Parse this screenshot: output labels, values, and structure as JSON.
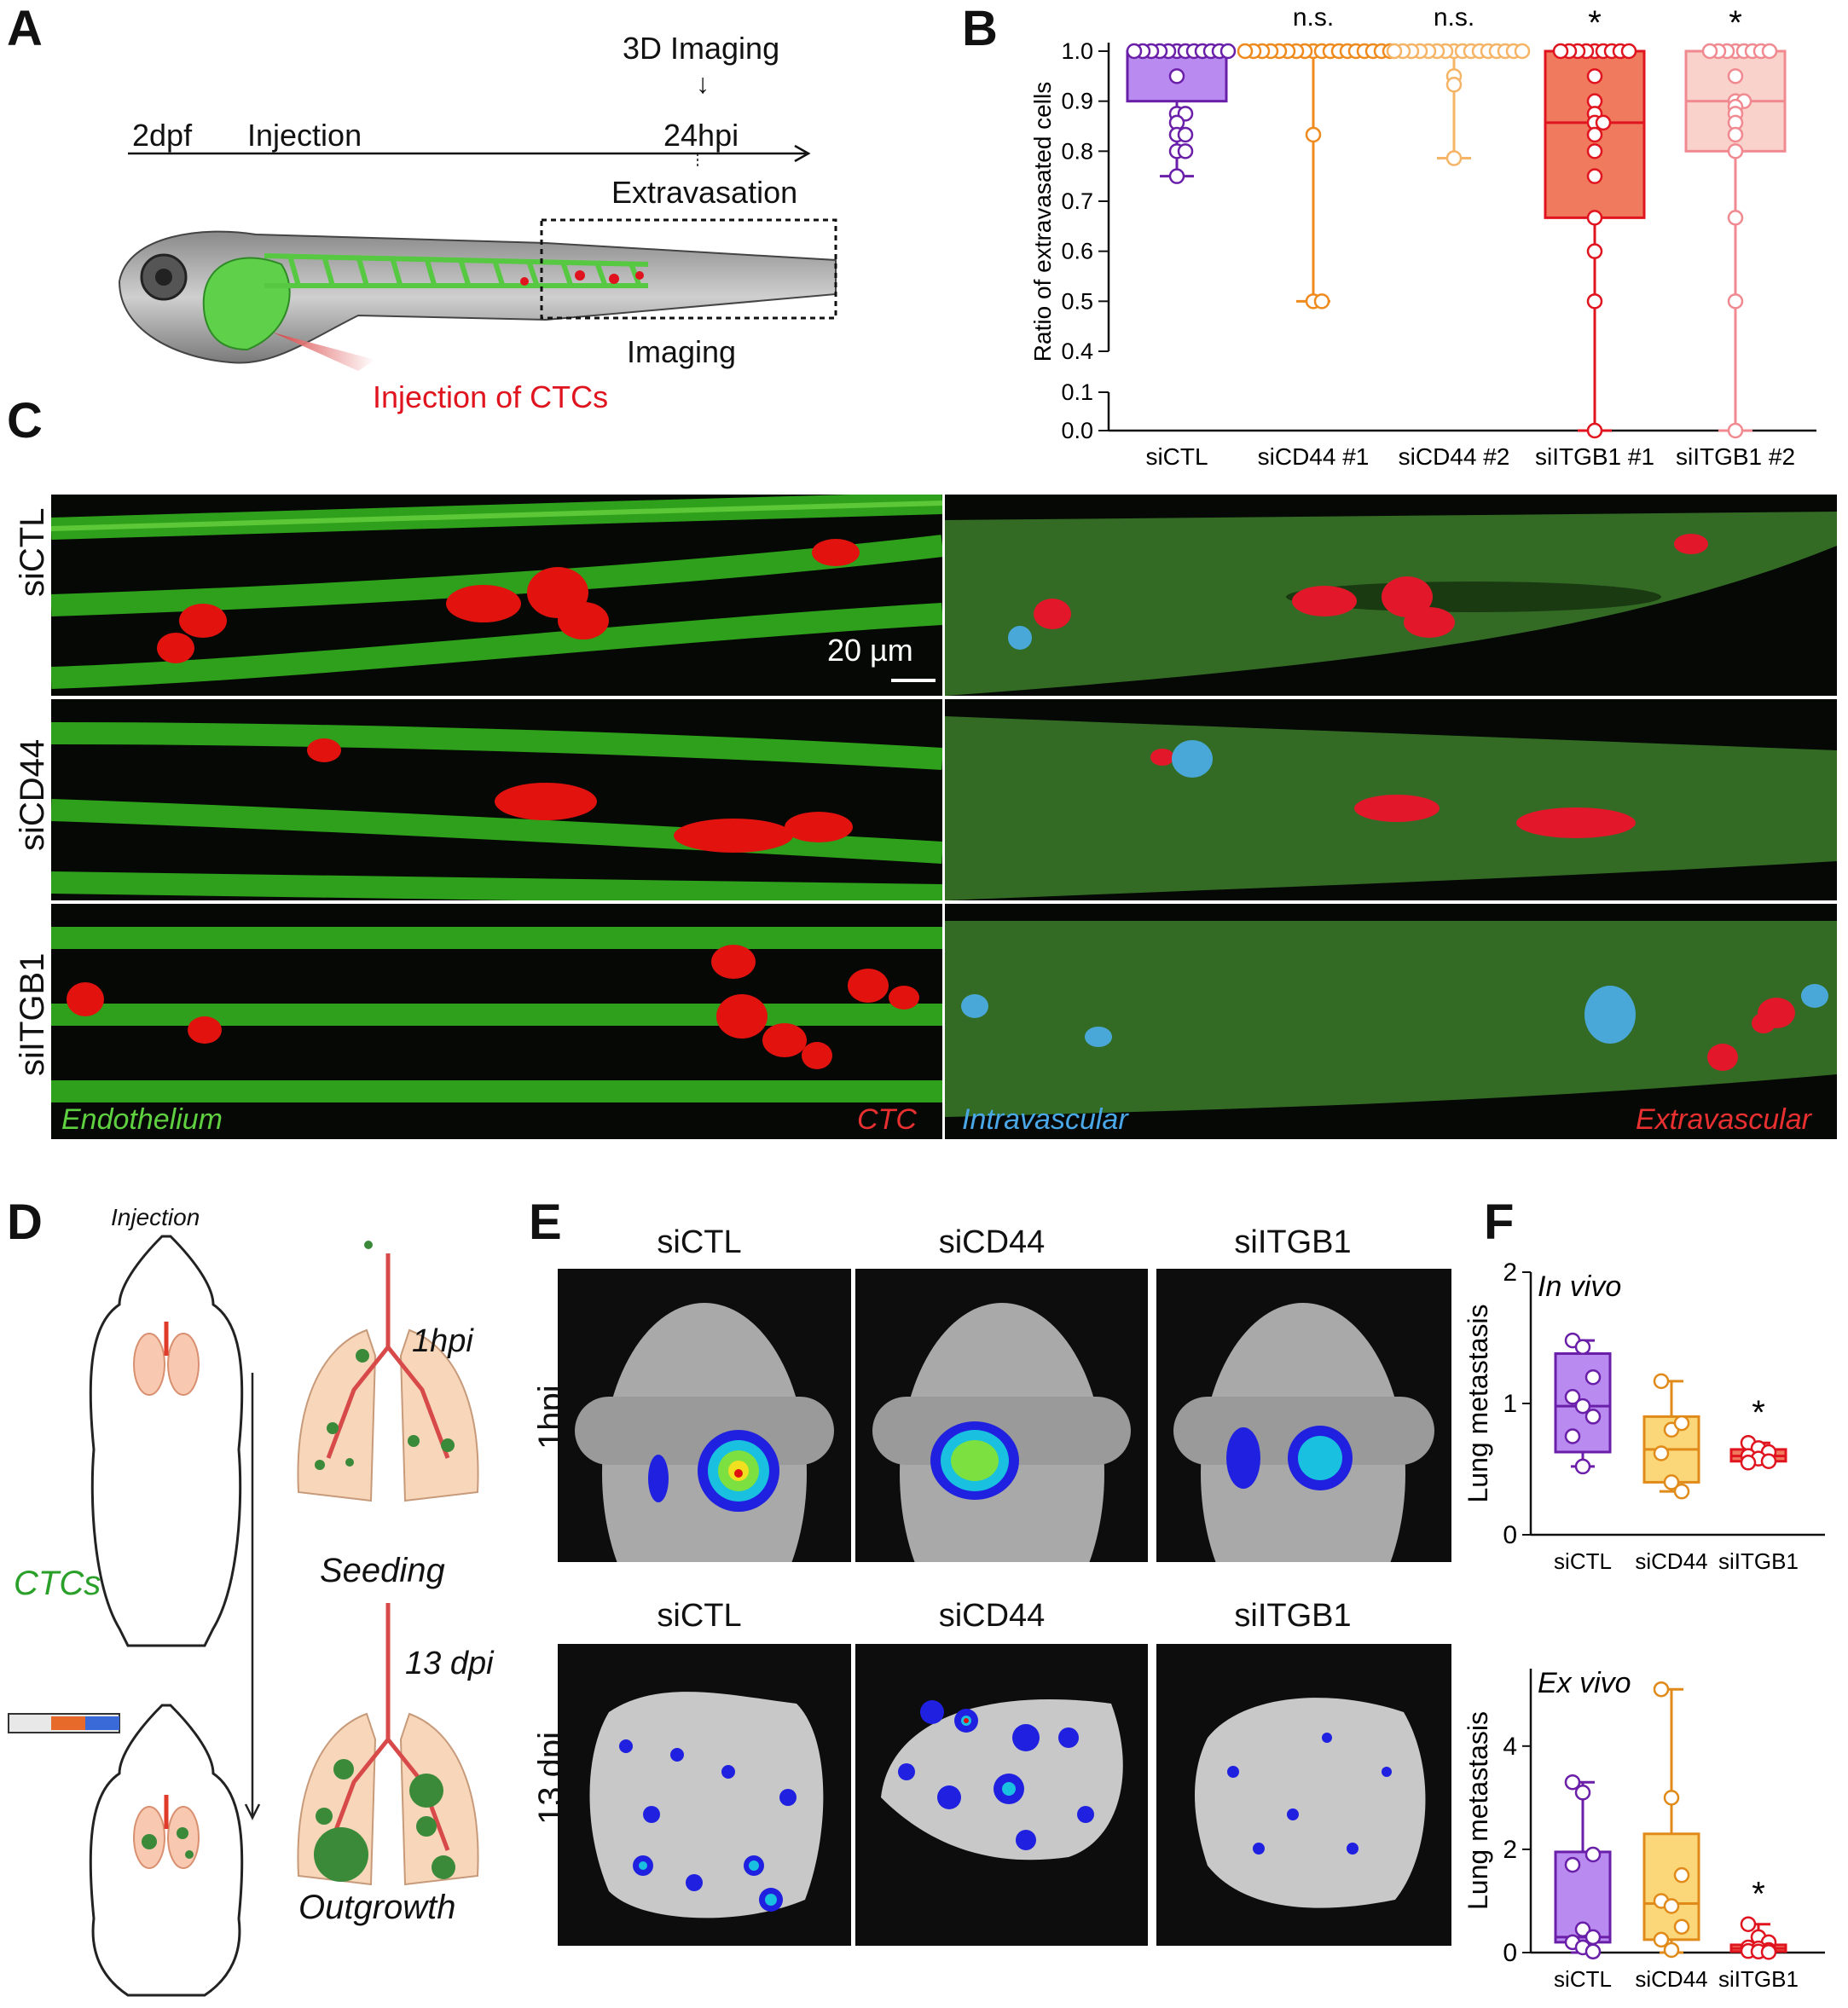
{
  "panel_letters": {
    "a": "A",
    "b": "B",
    "c": "C",
    "d": "D",
    "e": "E",
    "f": "F"
  },
  "panelA": {
    "imaging_3d": "3D Imaging",
    "t_2dpf": "2dpf",
    "injection": "Injection",
    "t_24hpi": "24hpi",
    "extravasation": "Extravasation",
    "imaging": "Imaging",
    "injection_ctcs": "Injection of CTCs"
  },
  "panelC": {
    "rows": [
      "siCTL",
      "siCD44",
      "siITGB1"
    ],
    "scale_bar": "20 µm",
    "left_legend_green": "Endothelium",
    "left_legend_red": "CTC",
    "right_legend_blue": "Intravascular",
    "right_legend_red": "Extravascular"
  },
  "panelD": {
    "injection": "Injection",
    "ctcs": "CTCs",
    "t1": "1hpi",
    "seeding": "Seeding",
    "t2": "13 dpi",
    "outgrowth": "Outgrowth"
  },
  "panelE": {
    "cols": [
      "siCTL",
      "siCD44",
      "siITGB1"
    ],
    "row1": "1hpi",
    "row2": "13 dpi"
  },
  "colors": {
    "siCTL": "#6a1fa8",
    "siCTL_fill": "#b98af0",
    "siCD44_1": "#ef8a1e",
    "siCD44_2": "#f5b466",
    "siITGB1_1": "#e0141e",
    "siITGB1_1_fill": "#f07a5e",
    "siITGB1_2": "#f08a90",
    "siITGB1_2_fill": "#fad2cc",
    "F_siCD44": "#e08a1a",
    "F_siCD44_fill": "#fbd77a"
  },
  "chart_data": [
    {
      "panel": "B",
      "type": "box",
      "ylabel": "Ratio of extravasated cells",
      "categories": [
        "siCTL",
        "siCD44 #1",
        "siCD44 #2",
        "siITGB1 #1",
        "siITGB1 #2"
      ],
      "y_ticks": [
        "0.0",
        "0.1",
        "0.4",
        "0.5",
        "0.6",
        "0.7",
        "0.8",
        "0.9",
        "1.0"
      ],
      "axis_break": [
        0.1,
        0.4
      ],
      "significance": [
        "",
        "n.s.",
        "n.s.",
        "*",
        "*"
      ],
      "boxes": [
        {
          "min": 0.75,
          "q1": 0.9,
          "median": 1.0,
          "q3": 1.0,
          "max": 1.0
        },
        {
          "min": 0.5,
          "q1": 1.0,
          "median": 1.0,
          "q3": 1.0,
          "max": 1.0
        },
        {
          "min": 0.786,
          "q1": 1.0,
          "median": 1.0,
          "q3": 1.0,
          "max": 1.0
        },
        {
          "min": 0.0,
          "q1": 0.667,
          "median": 0.857,
          "q3": 1.0,
          "max": 1.0
        },
        {
          "min": 0.0,
          "q1": 0.8,
          "median": 0.9,
          "q3": 1.0,
          "max": 1.0
        }
      ],
      "points": [
        [
          1,
          1,
          1,
          1,
          1,
          1,
          1,
          1,
          1,
          1,
          1,
          1,
          0.95,
          0.875,
          0.875,
          0.857,
          0.833,
          0.833,
          0.8,
          0.8,
          0.75
        ],
        [
          1,
          1,
          1,
          1,
          1,
          1,
          1,
          1,
          1,
          1,
          1,
          1,
          1,
          1,
          1,
          1,
          1,
          1,
          0.833,
          0.5,
          0.5
        ],
        [
          1,
          1,
          1,
          1,
          1,
          1,
          1,
          1,
          1,
          1,
          1,
          1,
          1,
          1,
          1,
          1,
          0.95,
          0.933,
          0.786
        ],
        [
          1,
          1,
          1,
          1,
          1,
          1,
          1,
          1,
          1,
          0.95,
          0.9,
          0.875,
          0.857,
          0.857,
          0.833,
          0.8,
          0.75,
          0.667,
          0.6,
          0.5,
          0.0
        ],
        [
          1,
          1,
          1,
          1,
          1,
          1,
          1,
          1,
          0.95,
          0.9,
          0.9,
          0.889,
          0.875,
          0.857,
          0.833,
          0.8,
          0.667,
          0.5,
          0.0
        ]
      ]
    },
    {
      "panel": "F-top",
      "type": "box",
      "annotation": "In vivo",
      "ylabel": "Lung metastasis",
      "categories": [
        "siCTL",
        "siCD44",
        "siITGB1"
      ],
      "ylim": [
        0,
        2
      ],
      "y_ticks": [
        "0",
        "1",
        "2"
      ],
      "significance": [
        "",
        "",
        "*"
      ],
      "boxes": [
        {
          "min": 0.52,
          "q1": 0.63,
          "median": 0.98,
          "q3": 1.38,
          "max": 1.48
        },
        {
          "min": 0.33,
          "q1": 0.4,
          "median": 0.65,
          "q3": 0.9,
          "max": 1.17
        },
        {
          "min": 0.55,
          "q1": 0.56,
          "median": 0.6,
          "q3": 0.65,
          "max": 0.7
        }
      ],
      "points": [
        [
          1.48,
          1.43,
          1.2,
          1.05,
          0.98,
          0.9,
          0.75,
          0.52
        ],
        [
          1.17,
          0.8,
          0.85,
          0.62,
          0.4,
          0.33
        ],
        [
          0.7,
          0.66,
          0.63,
          0.6,
          0.58,
          0.56,
          0.55
        ]
      ]
    },
    {
      "panel": "F-bottom",
      "type": "box",
      "annotation": "Ex vivo",
      "ylabel": "Lung metastasis",
      "categories": [
        "siCTL",
        "siCD44",
        "siITGB1"
      ],
      "ylim": [
        0,
        5.5
      ],
      "y_ticks": [
        "0",
        "2",
        "4"
      ],
      "significance": [
        "",
        "",
        "*"
      ],
      "boxes": [
        {
          "min": 0.0,
          "q1": 0.2,
          "median": 0.3,
          "q3": 1.95,
          "max": 3.3
        },
        {
          "min": 0.0,
          "q1": 0.25,
          "median": 0.95,
          "q3": 2.3,
          "max": 5.1
        },
        {
          "min": 0.0,
          "q1": 0.02,
          "median": 0.08,
          "q3": 0.15,
          "max": 0.55
        }
      ],
      "points": [
        [
          3.3,
          3.1,
          1.9,
          1.7,
          0.45,
          0.3,
          0.2,
          0.1,
          0.02
        ],
        [
          5.1,
          3.0,
          1.5,
          1.0,
          0.9,
          0.5,
          0.25,
          0.05
        ],
        [
          0.55,
          0.3,
          0.2,
          0.1,
          0.08,
          0.05,
          0.03,
          0.02,
          0.01
        ]
      ]
    }
  ]
}
